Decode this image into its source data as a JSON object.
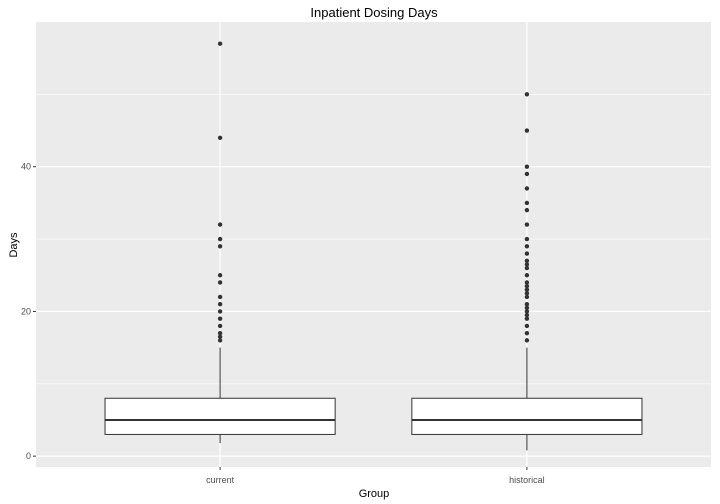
{
  "chart_data": {
    "type": "boxplot",
    "title": "Inpatient Dosing Days",
    "xlabel": "Group",
    "ylabel": "Days",
    "categories": [
      "current",
      "historical"
    ],
    "ylim": [
      -1.5,
      60
    ],
    "yticks": [
      0,
      20,
      40
    ],
    "grid": true,
    "legend": "none",
    "colors": {
      "panel": "#ebebeb",
      "grid_major": "#ffffff",
      "box_fill": "#ffffff",
      "line": "#333333",
      "point": "#333333"
    },
    "boxes": [
      {
        "category": "current",
        "min": 1.8,
        "q1": 3,
        "median": 5,
        "q3": 8,
        "max": 15,
        "outliers": [
          57,
          44,
          32,
          30,
          29,
          25,
          24,
          22,
          21,
          20,
          19,
          18,
          17,
          16.5,
          16
        ]
      },
      {
        "category": "historical",
        "min": 0.8,
        "q1": 3,
        "median": 5,
        "q3": 8,
        "max": 15,
        "outliers": [
          50,
          45,
          40,
          39,
          37,
          35,
          34,
          32,
          30,
          29,
          28,
          27,
          26.5,
          26,
          25,
          24,
          23.5,
          23,
          22.5,
          22,
          21,
          20.5,
          20,
          19.5,
          19,
          18,
          17,
          16
        ]
      }
    ]
  }
}
